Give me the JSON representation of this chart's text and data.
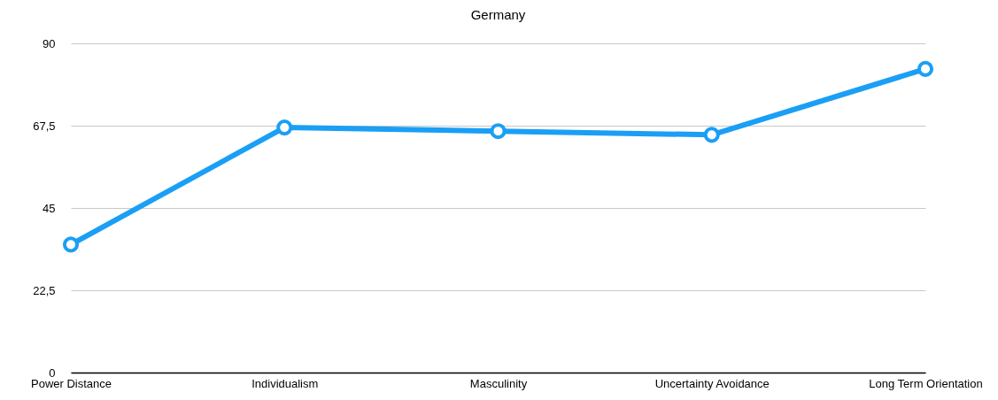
{
  "chart_data": {
    "type": "line",
    "title": "Germany",
    "categories": [
      "Power Distance",
      "Individualism",
      "Masculinity",
      "Uncertainty Avoidance",
      "Long Term Orientation"
    ],
    "series": [
      {
        "color": "#1a9ff5",
        "values": [
          35,
          67,
          66,
          65,
          83
        ]
      }
    ],
    "ylim": [
      0,
      90
    ],
    "yticks": [
      0,
      {
        "value": 22.5,
        "label": "22,5"
      },
      45,
      {
        "value": 67.5,
        "label": "67,5"
      },
      90
    ],
    "grid": "y",
    "marker": "circle",
    "line_style": "solid"
  }
}
